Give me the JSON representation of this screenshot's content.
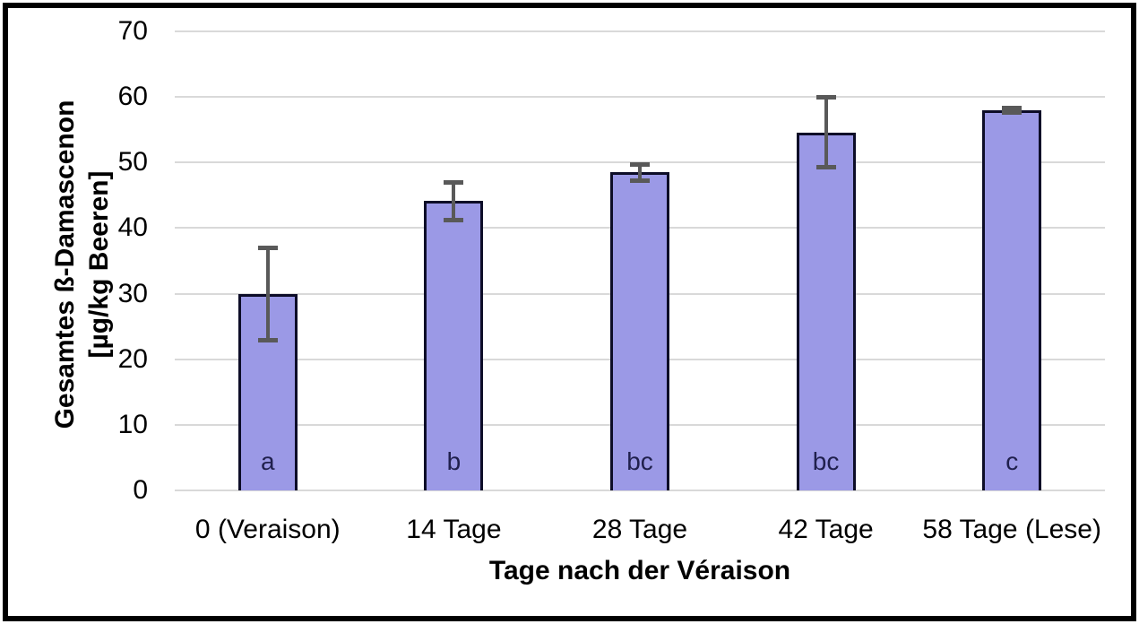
{
  "chart_data": {
    "type": "bar",
    "title": "",
    "categories": [
      "0 (Veraison)",
      "14 Tage",
      "28 Tage",
      "42 Tage",
      "58 Tage (Lese)"
    ],
    "values": [
      30,
      44.1,
      48.5,
      54.6,
      58
    ],
    "error_plus": [
      7.1,
      2.9,
      1.3,
      5.4,
      0.4
    ],
    "error_minus": [
      7.1,
      2.9,
      1.3,
      5.4,
      0.4
    ],
    "significance_letters": [
      "a",
      "b",
      "bc",
      "bc",
      "c"
    ],
    "xlabel": "Tage nach der Véraison",
    "ylabel_line1": "Gesamtes ß-Damascenon",
    "ylabel_line2": "[µg/kg Beeren]",
    "ylim": [
      0,
      70
    ],
    "ytick_step": 10,
    "yticks": [
      0,
      10,
      20,
      30,
      40,
      50,
      60,
      70
    ],
    "grid": true,
    "legend_position": "none",
    "colors": {
      "bar_fill": "#9B99E6",
      "bar_border": "#0D0D28",
      "error_bar": "#595959",
      "gridline": "#D9D9D9",
      "tick_text": "#000000",
      "letter_text": "#20204D",
      "frame_border": "#000000",
      "background": "#FFFFFF"
    }
  }
}
